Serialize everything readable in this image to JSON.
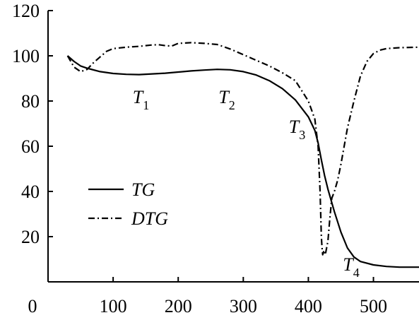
{
  "chart_data": {
    "type": "line",
    "title": "",
    "xlabel": "",
    "ylabel": "",
    "xlim": [
      0,
      570
    ],
    "ylim": [
      0,
      120
    ],
    "x_ticks": [
      100,
      200,
      300,
      400,
      500
    ],
    "y_ticks": [
      20,
      40,
      60,
      80,
      100,
      120
    ],
    "origin_label": "0",
    "grid": false,
    "legend_position": "left",
    "series": [
      {
        "name": "TG",
        "style": "solid",
        "color": "#000000",
        "points": [
          [
            30,
            100
          ],
          [
            40,
            97.5
          ],
          [
            50,
            95.5
          ],
          [
            60,
            94.5
          ],
          [
            80,
            93
          ],
          [
            100,
            92.2
          ],
          [
            120,
            91.8
          ],
          [
            140,
            91.7
          ],
          [
            160,
            92
          ],
          [
            180,
            92.3
          ],
          [
            200,
            92.8
          ],
          [
            220,
            93.3
          ],
          [
            240,
            93.7
          ],
          [
            260,
            94
          ],
          [
            280,
            93.8
          ],
          [
            300,
            93
          ],
          [
            320,
            91.5
          ],
          [
            340,
            89
          ],
          [
            360,
            85.5
          ],
          [
            380,
            80.5
          ],
          [
            400,
            73
          ],
          [
            410,
            67
          ],
          [
            415,
            61.5
          ],
          [
            420,
            54
          ],
          [
            425,
            47
          ],
          [
            430,
            41
          ],
          [
            440,
            31
          ],
          [
            450,
            22
          ],
          [
            460,
            15
          ],
          [
            470,
            11
          ],
          [
            480,
            9
          ],
          [
            500,
            7.5
          ],
          [
            520,
            6.8
          ],
          [
            540,
            6.5
          ],
          [
            570,
            6.5
          ]
        ]
      },
      {
        "name": "DTG",
        "style": "dash-dot",
        "color": "#000000",
        "points": [
          [
            30,
            100
          ],
          [
            40,
            95
          ],
          [
            50,
            93
          ],
          [
            60,
            94
          ],
          [
            70,
            97
          ],
          [
            80,
            99.5
          ],
          [
            90,
            102
          ],
          [
            100,
            103.2
          ],
          [
            120,
            103.8
          ],
          [
            140,
            104.2
          ],
          [
            160,
            104.8
          ],
          [
            170,
            104.9
          ],
          [
            180,
            104.5
          ],
          [
            190,
            104.3
          ],
          [
            200,
            105.5
          ],
          [
            220,
            105.8
          ],
          [
            240,
            105.5
          ],
          [
            260,
            105
          ],
          [
            280,
            103
          ],
          [
            300,
            100.5
          ],
          [
            320,
            98
          ],
          [
            340,
            95.5
          ],
          [
            360,
            92.5
          ],
          [
            380,
            89
          ],
          [
            400,
            80
          ],
          [
            410,
            72
          ],
          [
            415,
            60
          ],
          [
            418,
            40
          ],
          [
            420,
            20
          ],
          [
            421,
            15
          ],
          [
            422,
            12
          ],
          [
            424,
            14
          ],
          [
            426,
            12
          ],
          [
            430,
            18
          ],
          [
            433,
            28
          ],
          [
            436,
            37
          ],
          [
            440,
            40
          ],
          [
            445,
            45
          ],
          [
            450,
            52
          ],
          [
            460,
            68
          ],
          [
            470,
            80
          ],
          [
            480,
            91
          ],
          [
            490,
            97.5
          ],
          [
            500,
            101
          ],
          [
            510,
            102.5
          ],
          [
            520,
            103.2
          ],
          [
            540,
            103.6
          ],
          [
            570,
            103.8
          ]
        ]
      }
    ],
    "annotations": [
      {
        "main": "T",
        "sub": "1",
        "x": 130,
        "y": 79
      },
      {
        "main": "T",
        "sub": "2",
        "x": 262,
        "y": 79
      },
      {
        "main": "T",
        "sub": "3",
        "x": 370,
        "y": 66
      },
      {
        "main": "T",
        "sub": "4",
        "x": 453,
        "y": 5
      }
    ]
  }
}
